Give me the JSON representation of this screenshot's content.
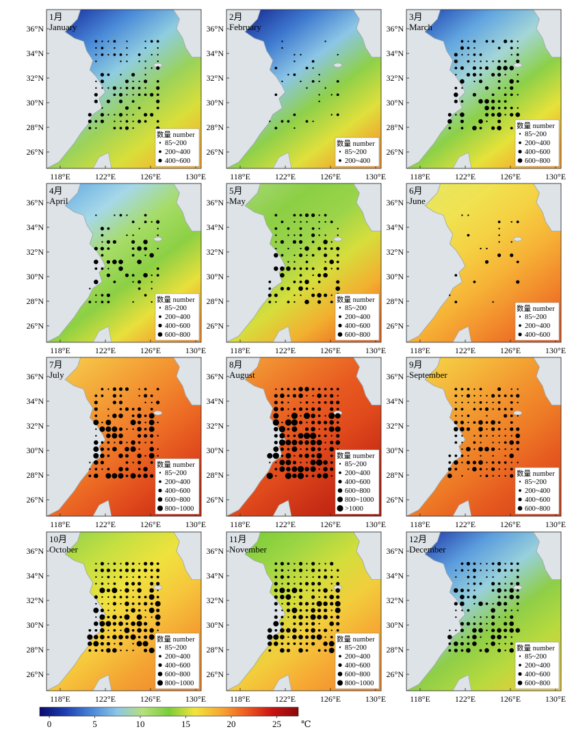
{
  "figure": {
    "axes": {
      "lat_labels": [
        "36°N",
        "34°N",
        "32°N",
        "30°N",
        "28°N",
        "26°N"
      ],
      "lon_labels": [
        "118°E",
        "122°E",
        "126°E",
        "130°E"
      ]
    },
    "legend_title": "数量 number",
    "colorbar": {
      "ticks": [
        "0",
        "5",
        "10",
        "15",
        "20",
        "25"
      ],
      "unit": "℃",
      "stops": [
        "#0a0a6e",
        "#1d3fb0",
        "#4a86d8",
        "#8cc6e6",
        "#b6e07a",
        "#7ccc3a",
        "#f2e43c",
        "#f7a834",
        "#ee5a20",
        "#c81414",
        "#8a0a0a"
      ]
    },
    "colors": {
      "land": "#dde3e7",
      "coast": "#9aa4aa",
      "dot": "#000000"
    },
    "panels": [
      {
        "month_cn": "1月",
        "month_en": "January",
        "legend": [
          "85~200",
          "200~400",
          "400~600"
        ]
      },
      {
        "month_cn": "2月",
        "month_en": "February",
        "legend": [
          "85~200",
          "200~400"
        ]
      },
      {
        "month_cn": "3月",
        "month_en": "March",
        "legend": [
          "85~200",
          "200~400",
          "400~600",
          "600~800"
        ]
      },
      {
        "month_cn": "4月",
        "month_en": "April",
        "legend": [
          "85~200",
          "200~400",
          "400~600",
          "600~800"
        ]
      },
      {
        "month_cn": "5月",
        "month_en": "May",
        "legend": [
          "85~200",
          "200~400",
          "400~600",
          "600~800"
        ]
      },
      {
        "month_cn": "6月",
        "month_en": "June",
        "legend": [
          "85~200",
          "200~400",
          "400~600"
        ]
      },
      {
        "month_cn": "7月",
        "month_en": "July",
        "legend": [
          "85~200",
          "200~400",
          "400~600",
          "600~800",
          "800~1000"
        ]
      },
      {
        "month_cn": "8月",
        "month_en": "August",
        "legend": [
          "85~200",
          "200~400",
          "400~600",
          "600~800",
          "800~1000",
          ">1000"
        ]
      },
      {
        "month_cn": "9月",
        "month_en": "September",
        "legend": [
          "85~200",
          "200~400",
          "400~600",
          "600~800"
        ]
      },
      {
        "month_cn": "10月",
        "month_en": "October",
        "legend": [
          "85~200",
          "200~400",
          "400~600",
          "600~800",
          "800~1000"
        ]
      },
      {
        "month_cn": "11月",
        "month_en": "November",
        "legend": [
          "85~200",
          "200~400",
          "400~600",
          "600~800",
          "800~1000"
        ]
      },
      {
        "month_cn": "12月",
        "month_en": "December",
        "legend": [
          "85~200",
          "200~400",
          "400~600",
          "600~800"
        ]
      }
    ]
  }
}
